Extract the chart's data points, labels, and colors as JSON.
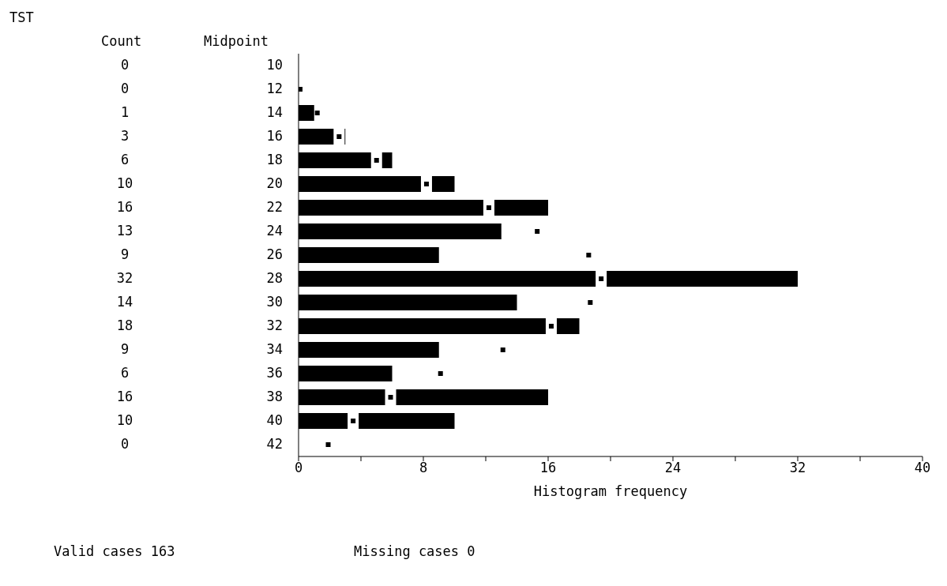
{
  "chart_data": {
    "type": "bar",
    "orientation": "horizontal",
    "title": "TST",
    "xlabel": "Histogram frequency",
    "annotations": [
      "Count",
      "Midpoint",
      "Valid cases      163",
      "Missing cases      0"
    ],
    "categories": [
      "10",
      "12",
      "14",
      "16",
      "18",
      "20",
      "22",
      "24",
      "26",
      "28",
      "30",
      "32",
      "34",
      "36",
      "38",
      "40",
      "42"
    ],
    "series": [
      {
        "color": "#000000",
        "values": [
          0,
          0,
          1,
          3,
          6,
          10,
          16,
          13,
          9,
          32,
          14,
          18,
          9,
          6,
          16,
          10,
          0
        ],
        "value_labels": [
          "0",
          "0",
          "1",
          "3",
          "6",
          "10",
          "16",
          "13",
          "9",
          "32",
          "14",
          "18",
          "9",
          "6",
          "16",
          "10",
          "0"
        ]
      },
      {
        "type": "scatter",
        "color": "#000000",
        "marker": "square",
        "values": [
          null,
          0.1,
          1.2,
          2.6,
          5,
          8.2,
          12.2,
          15.3,
          18.6,
          19.4,
          18.7,
          16.2,
          13.1,
          9.1,
          5.9,
          3.5,
          1.9
        ]
      }
    ],
    "xlim": [
      0,
      40
    ],
    "xticks": [
      0,
      {
        "value": 4,
        "label": null
      },
      8,
      {
        "value": 12,
        "label": null
      },
      16,
      {
        "value": 20,
        "label": null
      },
      24,
      {
        "value": 28,
        "label": null
      },
      32,
      {
        "value": 36,
        "label": null
      },
      40
    ],
    "grid": false,
    "legend": false
  }
}
